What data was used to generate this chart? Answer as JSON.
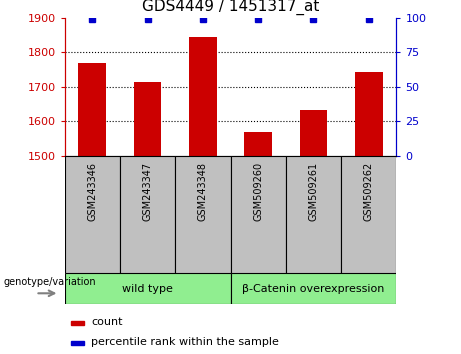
{
  "title": "GDS4449 / 1451317_at",
  "categories": [
    "GSM243346",
    "GSM243347",
    "GSM243348",
    "GSM509260",
    "GSM509261",
    "GSM509262"
  ],
  "bar_values": [
    1768,
    1714,
    1843,
    1568,
    1632,
    1742
  ],
  "percentile_values": [
    99,
    99,
    99,
    99,
    99,
    99
  ],
  "ylim_left": [
    1500,
    1900
  ],
  "ylim_right": [
    0,
    100
  ],
  "yticks_left": [
    1500,
    1600,
    1700,
    1800,
    1900
  ],
  "yticks_right": [
    0,
    25,
    50,
    75,
    100
  ],
  "bar_color": "#cc0000",
  "percentile_color": "#0000cc",
  "bar_width": 0.5,
  "group_box_color": "#c0c0c0",
  "group1_label": "wild type",
  "group2_label": "β-Catenin overexpression",
  "group_color": "#90ee90",
  "genotype_label": "genotype/variation",
  "legend_count_label": "count",
  "legend_pct_label": "percentile rank within the sample",
  "legend_count_color": "#cc0000",
  "legend_pct_color": "#0000cc",
  "grid_yticks": [
    1600,
    1700,
    1800
  ],
  "left_ytick_color": "#cc0000",
  "right_ytick_color": "#0000cc",
  "left_spine_color": "#cc0000",
  "right_spine_color": "#0000cc"
}
